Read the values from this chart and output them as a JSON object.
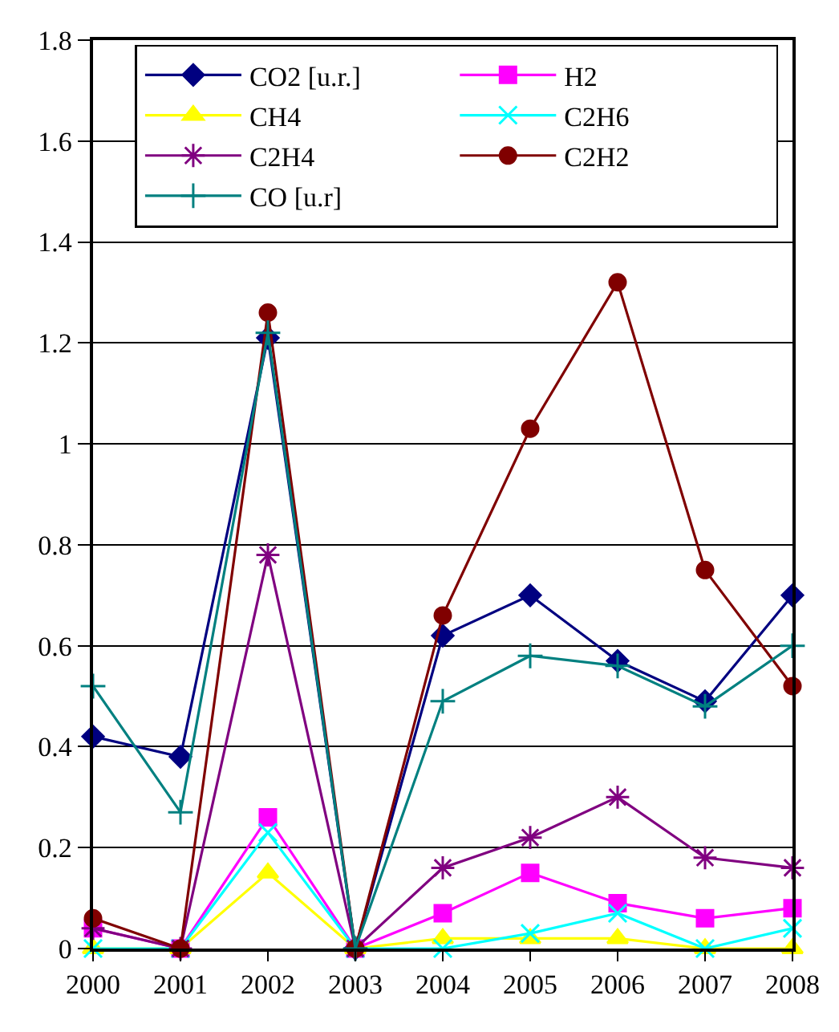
{
  "chart_data": {
    "type": "line",
    "categories": [
      "2000",
      "2001",
      "2002",
      "2003",
      "2004",
      "2005",
      "2006",
      "2007",
      "2008"
    ],
    "series": [
      {
        "name": "CO2 [u.r.]",
        "color": "#000080",
        "marker": "diamond",
        "values": [
          0.42,
          0.38,
          1.21,
          0,
          0.62,
          0.7,
          0.57,
          0.49,
          0.7
        ]
      },
      {
        "name": "H2",
        "color": "#ff00ff",
        "marker": "square",
        "values": [
          0.04,
          0,
          0.26,
          0,
          0.07,
          0.15,
          0.09,
          0.06,
          0.08
        ]
      },
      {
        "name": "CH4",
        "color": "#ffff00",
        "marker": "triangle",
        "values": [
          0,
          0,
          0.15,
          0,
          0.02,
          0.02,
          0.02,
          0,
          0
        ]
      },
      {
        "name": "C2H6",
        "color": "#00ffff",
        "marker": "x",
        "values": [
          0,
          0,
          0.23,
          0,
          0,
          0.03,
          0.07,
          0,
          0.04
        ]
      },
      {
        "name": "C2H4",
        "color": "#800080",
        "marker": "cross",
        "values": [
          0.04,
          0,
          0.78,
          0,
          0.16,
          0.22,
          0.3,
          0.18,
          0.16
        ]
      },
      {
        "name": "C2H2",
        "color": "#800000",
        "marker": "circle",
        "values": [
          0.06,
          0,
          1.26,
          0,
          0.66,
          1.03,
          1.32,
          0.75,
          0.52
        ]
      },
      {
        "name": "CO [u.r]",
        "color": "#008080",
        "marker": "plus",
        "values": [
          0.52,
          0.27,
          1.22,
          0,
          0.49,
          0.58,
          0.56,
          0.48,
          0.6
        ]
      }
    ],
    "ylim": [
      0,
      1.8
    ],
    "yticks": [
      0,
      0.2,
      0.4,
      0.6,
      0.8,
      1,
      1.2,
      1.4,
      1.6,
      1.8
    ],
    "grid": "y",
    "legend": "top",
    "line_style": "solid"
  }
}
